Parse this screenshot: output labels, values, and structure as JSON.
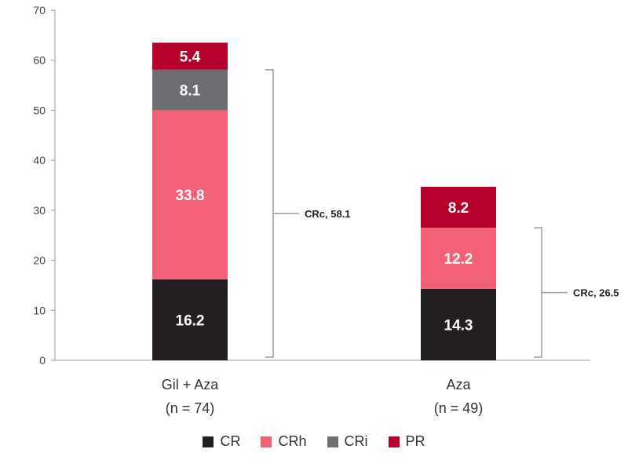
{
  "chart_data": {
    "type": "bar",
    "stacked": true,
    "categories": [
      "Gil + Aza (n = 74)",
      "Aza (n = 49)"
    ],
    "category_lines": [
      [
        "Gil + Aza",
        "(n = 74)"
      ],
      [
        "Aza",
        "(n = 49)"
      ]
    ],
    "series": [
      {
        "name": "CR",
        "color": "#231f20",
        "values": [
          16.2,
          14.3
        ]
      },
      {
        "name": "CRh",
        "color": "#f26175",
        "values": [
          33.8,
          12.2
        ]
      },
      {
        "name": "CRi",
        "color": "#6d6e71",
        "values": [
          8.1,
          null
        ]
      },
      {
        "name": "PR",
        "color": "#b5002a",
        "values": [
          5.4,
          8.2
        ]
      }
    ],
    "data_labels": [
      [
        "16.2",
        "33.8",
        "8.1",
        "5.4"
      ],
      [
        "14.3",
        "12.2",
        "",
        "8.2"
      ]
    ],
    "annotations": [
      {
        "category_index": 0,
        "text": "CRc, 58.1",
        "value": 58.1
      },
      {
        "category_index": 1,
        "text": "CRc, 26.5",
        "value": 26.5
      }
    ],
    "ylim": [
      0,
      70
    ],
    "yticks": [
      0,
      10,
      20,
      30,
      40,
      50,
      60,
      70
    ],
    "grid": false,
    "legend_position": "bottom",
    "title": "",
    "xlabel": "",
    "ylabel": ""
  }
}
